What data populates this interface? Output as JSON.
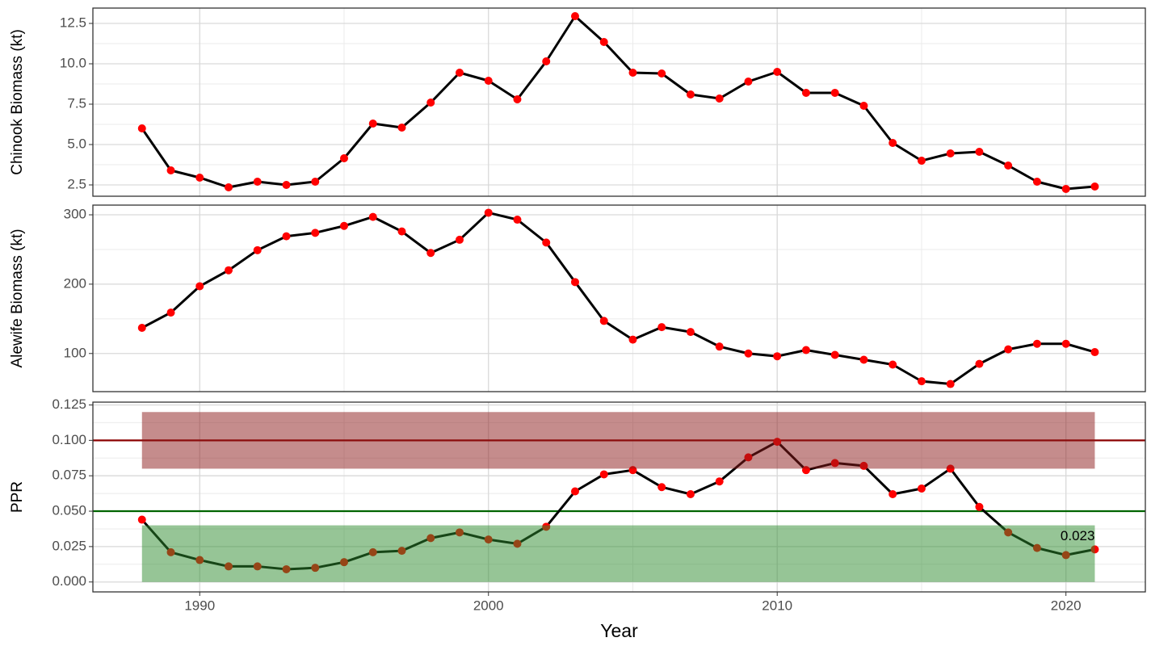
{
  "chart_data": [
    {
      "type": "line",
      "ylabel": "Chinook Biomass (kt)",
      "x": [
        1988,
        1989,
        1990,
        1991,
        1992,
        1993,
        1994,
        1995,
        1996,
        1997,
        1998,
        1999,
        2000,
        2001,
        2002,
        2003,
        2004,
        2005,
        2006,
        2007,
        2008,
        2009,
        2010,
        2011,
        2012,
        2013,
        2014,
        2015,
        2016,
        2017,
        2018,
        2019,
        2020,
        2021
      ],
      "values": [
        6.0,
        3.4,
        2.95,
        2.35,
        2.7,
        2.5,
        2.7,
        4.15,
        6.3,
        6.05,
        7.6,
        9.45,
        8.95,
        7.8,
        10.15,
        12.95,
        11.35,
        9.45,
        9.4,
        8.1,
        7.85,
        8.9,
        9.5,
        8.2,
        8.2,
        7.4,
        5.1,
        4.0,
        4.45,
        4.55,
        3.7,
        2.7,
        2.25,
        2.4
      ],
      "color": "#000000",
      "marker_color": "#ff0000",
      "xlim": [
        1986.3,
        2022.75
      ],
      "xticks": [
        1990,
        2000,
        2010,
        2020
      ],
      "ylim": [
        1.8,
        13.45
      ],
      "yticks": [
        2.5,
        {
          "value": 5,
          "label": "5.0"
        },
        7.5,
        {
          "value": 10,
          "label": "10.0"
        },
        12.5
      ],
      "grid": true
    },
    {
      "type": "line",
      "ylabel": "Alewife Biomass (kt)",
      "x": [
        1988,
        1989,
        1990,
        1991,
        1992,
        1993,
        1994,
        1995,
        1996,
        1997,
        1998,
        1999,
        2000,
        2001,
        2002,
        2003,
        2004,
        2005,
        2006,
        2007,
        2008,
        2009,
        2010,
        2011,
        2012,
        2013,
        2014,
        2015,
        2016,
        2017,
        2018,
        2019,
        2020,
        2021
      ],
      "values": [
        137,
        159,
        197,
        220,
        249,
        269,
        274,
        284,
        297,
        276,
        245,
        264,
        303,
        293,
        260,
        203,
        147,
        120,
        138,
        131,
        110,
        100,
        96,
        105,
        98,
        91,
        84,
        60,
        56,
        85,
        106,
        114,
        114,
        102
      ],
      "color": "#000000",
      "marker_color": "#ff0000",
      "xlim": [
        1986.3,
        2022.75
      ],
      "xticks": [
        1990,
        2000,
        2010,
        2020
      ],
      "ylim": [
        45,
        314
      ],
      "yticks": [
        100,
        200,
        300
      ],
      "grid": true
    },
    {
      "type": "line",
      "ylabel": "PPR",
      "xlabel": "Year",
      "x": [
        1988,
        1989,
        1990,
        1991,
        1992,
        1993,
        1994,
        1995,
        1996,
        1997,
        1998,
        1999,
        2000,
        2001,
        2002,
        2003,
        2004,
        2005,
        2006,
        2007,
        2008,
        2009,
        2010,
        2011,
        2012,
        2013,
        2014,
        2015,
        2016,
        2017,
        2018,
        2019,
        2020,
        2021
      ],
      "values": [
        0.044,
        0.021,
        0.0155,
        0.011,
        0.011,
        0.009,
        0.01,
        0.014,
        0.021,
        0.022,
        0.031,
        0.035,
        0.03,
        0.027,
        0.039,
        0.064,
        0.076,
        0.079,
        0.067,
        0.062,
        0.071,
        0.088,
        0.099,
        0.079,
        0.084,
        0.082,
        0.062,
        0.066,
        0.08,
        0.053,
        0.035,
        0.024,
        0.019,
        0.023
      ],
      "color": "#000000",
      "marker_color": "#ff0000",
      "xlim": [
        1986.3,
        2022.75
      ],
      "xticks": [
        1990,
        2000,
        2010,
        2020
      ],
      "ylim": [
        -0.007,
        0.127
      ],
      "yticks": [
        {
          "value": 0,
          "label": "0.000"
        },
        0.025,
        {
          "value": 0.05,
          "label": "0.050"
        },
        0.075,
        {
          "value": 0.1,
          "label": "0.100"
        },
        0.125
      ],
      "grid": true,
      "bands": [
        {
          "range": [
            0.08,
            0.12
          ],
          "color": "#8b1a1a"
        },
        {
          "range": [
            0,
            0.04
          ],
          "color": "#2e8b2e"
        }
      ],
      "hlines": [
        {
          "value": 0.1,
          "color": "#8b0000"
        },
        {
          "value": 0.05,
          "color": "#006400"
        }
      ]
    }
  ]
}
